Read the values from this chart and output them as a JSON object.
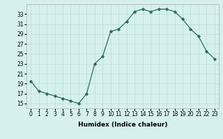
{
  "x": [
    0,
    1,
    2,
    3,
    4,
    5,
    6,
    7,
    8,
    9,
    10,
    11,
    12,
    13,
    14,
    15,
    16,
    17,
    18,
    19,
    20,
    21,
    22,
    23
  ],
  "y": [
    19.5,
    17.5,
    17.0,
    16.5,
    16.0,
    15.5,
    15.0,
    17.0,
    23.0,
    24.5,
    29.5,
    30.0,
    31.5,
    33.5,
    34.0,
    33.5,
    34.0,
    34.0,
    33.5,
    32.0,
    30.0,
    28.5,
    25.5,
    24.0
  ],
  "line_color": "#2d6b5e",
  "marker": "D",
  "marker_size": 1.8,
  "bg_color": "#d6f0f0",
  "grid_color": "#c0d8d8",
  "xlabel": "Humidex (Indice chaleur)",
  "xlim": [
    -0.5,
    23.5
  ],
  "ylim": [
    14,
    35
  ],
  "yticks": [
    15,
    17,
    19,
    21,
    23,
    25,
    27,
    29,
    31,
    33
  ],
  "xticks": [
    0,
    1,
    2,
    3,
    4,
    5,
    6,
    7,
    8,
    9,
    10,
    11,
    12,
    13,
    14,
    15,
    16,
    17,
    18,
    19,
    20,
    21,
    22,
    23
  ],
  "xlabel_fontsize": 6.5,
  "tick_fontsize": 5.5,
  "linewidth": 0.9
}
